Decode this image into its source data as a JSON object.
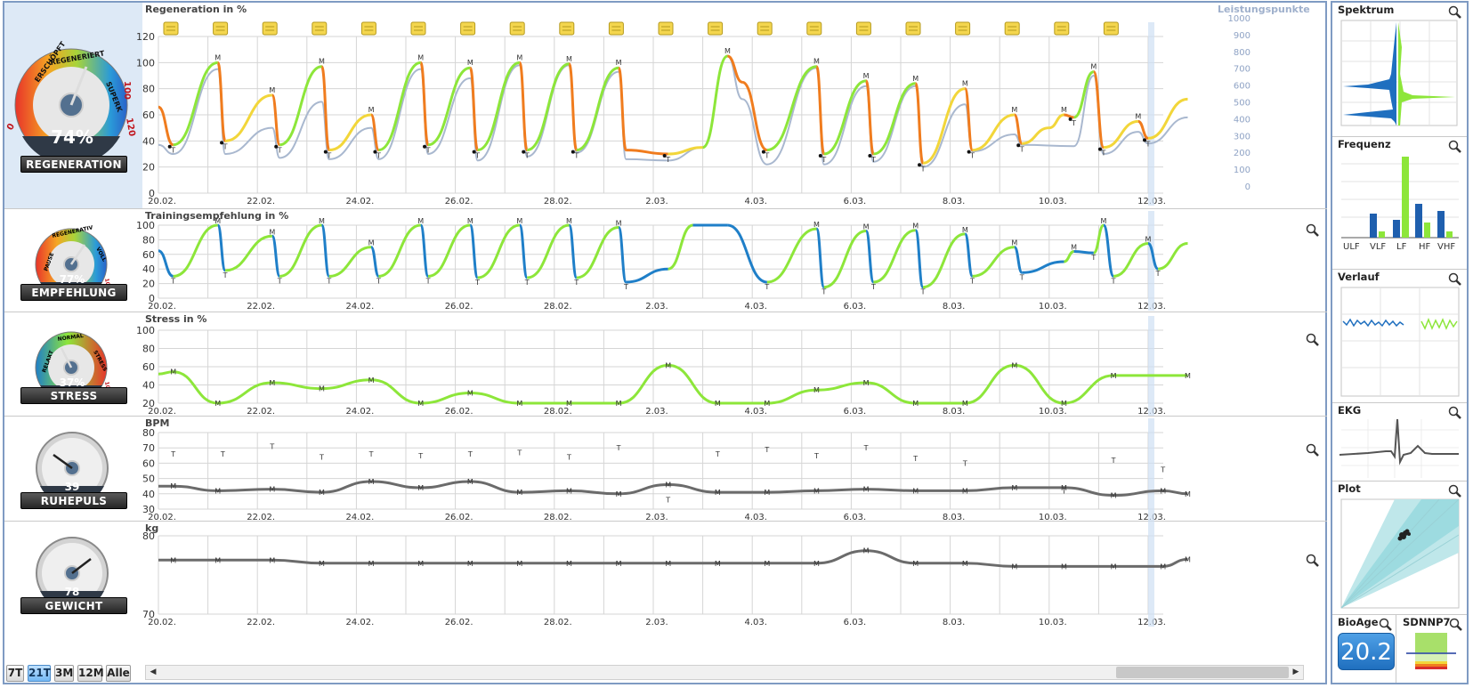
{
  "dates": [
    "20.02.",
    "22.02.",
    "24.02.",
    "26.02.",
    "28.02.",
    "2.03.",
    "4.03.",
    "6.03.",
    "8.03.",
    "10.03.",
    "12.03."
  ],
  "gauges": {
    "regeneration": {
      "label": "REGENERATION",
      "value": "74%",
      "arc": [
        "ERSCHÖPFT",
        "REGENERIERT",
        "SUPERK"
      ],
      "tick_lo": "0",
      "tick_mid": "100",
      "tick_hi": "120"
    },
    "empfehlung": {
      "label": "EMPFEHLUNG",
      "value": "77%",
      "arc": [
        "PAUSE",
        "REGENERATIV",
        "VOLL"
      ],
      "tick_hi": "100"
    },
    "stress": {
      "label": "STRESS",
      "value": "37%",
      "arc": [
        "RELAXT",
        "NORMAL",
        "STRESS"
      ],
      "tick_hi": "100"
    },
    "ruhepuls": {
      "label": "RUHEPULS",
      "value": "39"
    },
    "gewicht": {
      "label": "GEWICHT",
      "value": "78"
    }
  },
  "panels": {
    "regeneration": {
      "title": "Regeneration in %",
      "right_title": "Leistungspunkte",
      "y_ticks": [
        "120",
        "100",
        "80",
        "60",
        "40",
        "20",
        "0"
      ],
      "right_ticks": [
        "1000",
        "900",
        "800",
        "700",
        "600",
        "500",
        "400",
        "300",
        "200",
        "100",
        "0"
      ]
    },
    "training": {
      "title": "Trainingsempfehlung in %",
      "y_ticks": [
        "100",
        "80",
        "60",
        "40",
        "20",
        "0"
      ]
    },
    "stress": {
      "title": "Stress in %",
      "y_ticks": [
        "100",
        "80",
        "60",
        "40",
        "20"
      ]
    },
    "bpm": {
      "title": "BPM",
      "y_ticks": [
        "80",
        "70",
        "60",
        "50",
        "40",
        "30"
      ]
    },
    "weight": {
      "title": "kg",
      "y_ticks": [
        "80",
        "70"
      ]
    }
  },
  "marker_m": "M",
  "marker_t": "T",
  "right": {
    "spektrum": "Spektrum",
    "frequenz": "Frequenz",
    "frequenz_labels": [
      "ULF",
      "VLF",
      "LF",
      "HF",
      "VHF"
    ],
    "verlauf": "Verlauf",
    "ekg": "EKG",
    "plot": "Plot",
    "bioage": "BioAge",
    "bioage_value": "20.2",
    "sdnn": "SDNNP7"
  },
  "range_buttons": [
    "7T",
    "21T",
    "3M",
    "12M",
    "Alle"
  ],
  "range_active": "21T",
  "colors": {
    "green": "#8de63a",
    "orange": "#f07c1e",
    "yellow": "#f2d63a",
    "blue": "#1f7fc8",
    "gray_line": "#a9b8cf",
    "dark_line": "#6b6b6b",
    "red": "#d92c2c",
    "accent": "#7f9bc3"
  }
}
